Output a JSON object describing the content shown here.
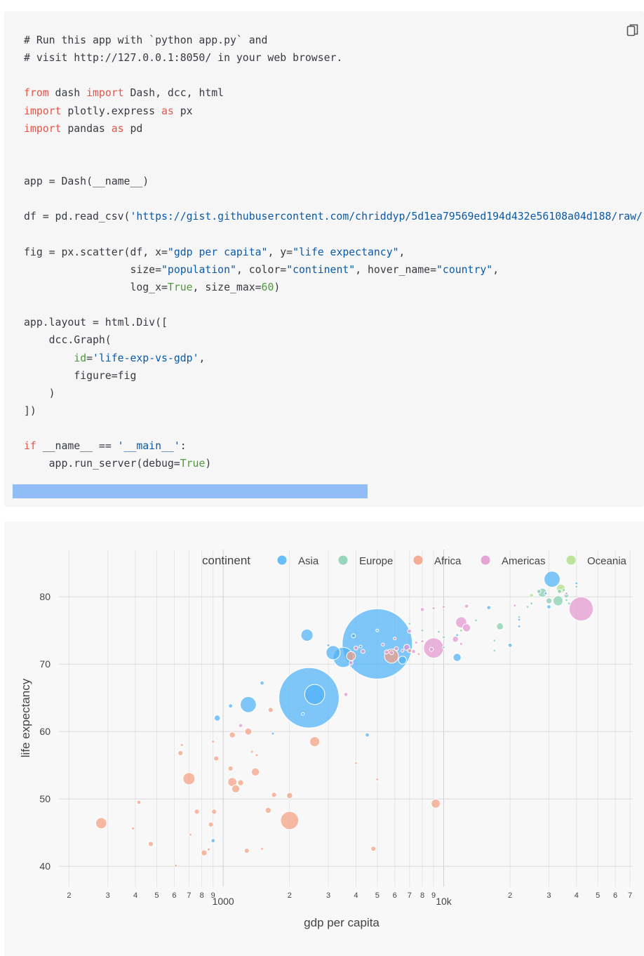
{
  "code": {
    "lines": [
      [
        {
          "t": "# Run this app with `python app.py` and"
        }
      ],
      [
        {
          "t": "# visit http://127.0.0.1:8050/ in your web browser."
        }
      ],
      [
        {
          "t": ""
        }
      ],
      [
        {
          "t": "from",
          "c": "kw"
        },
        {
          "t": " dash "
        },
        {
          "t": "import",
          "c": "kw"
        },
        {
          "t": " Dash, dcc, html"
        }
      ],
      [
        {
          "t": "import",
          "c": "kw"
        },
        {
          "t": " plotly.express "
        },
        {
          "t": "as",
          "c": "kw"
        },
        {
          "t": " px"
        }
      ],
      [
        {
          "t": "import",
          "c": "kw"
        },
        {
          "t": " pandas "
        },
        {
          "t": "as",
          "c": "kw"
        },
        {
          "t": " pd"
        }
      ],
      [
        {
          "t": ""
        }
      ],
      [
        {
          "t": ""
        }
      ],
      [
        {
          "t": "app = Dash(__name__)"
        }
      ],
      [
        {
          "t": ""
        }
      ],
      [
        {
          "t": "df = pd.read_csv("
        },
        {
          "t": "'https://gist.githubusercontent.com/chriddyp/5d1ea79569ed194d432e56108a04d188/raw/",
          "c": "str"
        }
      ],
      [
        {
          "t": ""
        }
      ],
      [
        {
          "t": "fig = px.scatter(df, x="
        },
        {
          "t": "\"gdp per capita\"",
          "c": "str"
        },
        {
          "t": ", y="
        },
        {
          "t": "\"life expectancy\"",
          "c": "str"
        },
        {
          "t": ","
        }
      ],
      [
        {
          "t": "                 size="
        },
        {
          "t": "\"population\"",
          "c": "str"
        },
        {
          "t": ", color="
        },
        {
          "t": "\"continent\"",
          "c": "str"
        },
        {
          "t": ", hover_name="
        },
        {
          "t": "\"country\"",
          "c": "str"
        },
        {
          "t": ","
        }
      ],
      [
        {
          "t": "                 log_x="
        },
        {
          "t": "True",
          "c": "num"
        },
        {
          "t": ", size_max="
        },
        {
          "t": "60",
          "c": "num"
        },
        {
          "t": ")"
        }
      ],
      [
        {
          "t": ""
        }
      ],
      [
        {
          "t": "app.layout = html.Div(["
        }
      ],
      [
        {
          "t": "    dcc.Graph("
        }
      ],
      [
        {
          "t": "        "
        },
        {
          "t": "id",
          "c": "num"
        },
        {
          "t": "="
        },
        {
          "t": "'life-exp-vs-gdp'",
          "c": "str"
        },
        {
          "t": ","
        }
      ],
      [
        {
          "t": "        figure=fig"
        }
      ],
      [
        {
          "t": "    )"
        }
      ],
      [
        {
          "t": "])"
        }
      ],
      [
        {
          "t": ""
        }
      ],
      [
        {
          "t": "if",
          "c": "kw"
        },
        {
          "t": " __name__ == "
        },
        {
          "t": "'__main__'",
          "c": "str"
        },
        {
          "t": ":"
        }
      ],
      [
        {
          "t": "    app.run_server(debug="
        },
        {
          "t": "True",
          "c": "num"
        },
        {
          "t": ")"
        }
      ]
    ]
  },
  "toolbar": {
    "copy_icon": "copy-icon"
  },
  "colors": {
    "Asia": "#4fb1f8",
    "Europe": "#86cfb2",
    "Africa": "#f39f82",
    "Americas": "#e297cf",
    "Oceania": "#b3de8a"
  },
  "chart_data": {
    "type": "scatter",
    "xlabel": "gdp per capita",
    "ylabel": "life expectancy",
    "x_scale": "log",
    "xlim": [
      180,
      72000
    ],
    "ylim": [
      37,
      87
    ],
    "x_ticks": [
      {
        "v": 200,
        "label": "2"
      },
      {
        "v": 300,
        "label": "3"
      },
      {
        "v": 400,
        "label": "4"
      },
      {
        "v": 500,
        "label": "5"
      },
      {
        "v": 600,
        "label": "6"
      },
      {
        "v": 700,
        "label": "7"
      },
      {
        "v": 800,
        "label": "8"
      },
      {
        "v": 900,
        "label": "9"
      },
      {
        "v": 1000,
        "label": "1000",
        "major": true
      },
      {
        "v": 2000,
        "label": "2"
      },
      {
        "v": 3000,
        "label": "3"
      },
      {
        "v": 4000,
        "label": "4"
      },
      {
        "v": 5000,
        "label": "5"
      },
      {
        "v": 6000,
        "label": "6"
      },
      {
        "v": 7000,
        "label": "7"
      },
      {
        "v": 8000,
        "label": "8"
      },
      {
        "v": 9000,
        "label": "9"
      },
      {
        "v": 10000,
        "label": "10k",
        "major": true
      },
      {
        "v": 20000,
        "label": "2"
      },
      {
        "v": 30000,
        "label": "3"
      },
      {
        "v": 40000,
        "label": "4"
      },
      {
        "v": 50000,
        "label": "5"
      },
      {
        "v": 60000,
        "label": "6"
      },
      {
        "v": 70000,
        "label": "7"
      }
    ],
    "y_ticks": [
      40,
      50,
      60,
      70,
      80
    ],
    "grid": true,
    "legend": {
      "title": "continent",
      "placement": "top-right",
      "entries": [
        "Asia",
        "Europe",
        "Africa",
        "Americas",
        "Oceania"
      ]
    },
    "series": [
      {
        "name": "Asia",
        "points": [
          [
            5000,
            73,
            3.5
          ],
          [
            2450,
            65,
            3
          ],
          [
            2600,
            65.5,
            1
          ],
          [
            3500,
            71,
            1
          ],
          [
            3150,
            71.7,
            0.7
          ],
          [
            1300,
            64,
            0.8
          ],
          [
            2400,
            74.3,
            0.6
          ],
          [
            1080,
            63.8,
            0.2
          ],
          [
            940,
            62,
            0.3
          ],
          [
            1500,
            67.2,
            0.2
          ],
          [
            900,
            43.8,
            0.2
          ],
          [
            4500,
            59.5,
            0.2
          ],
          [
            3000,
            72.8,
            0.1
          ],
          [
            11500,
            71,
            0.4
          ],
          [
            11500,
            74.3,
            0.1
          ],
          [
            6500,
            70.6,
            0.4
          ],
          [
            16000,
            78.4,
            0.2
          ],
          [
            20000,
            72.8,
            0.2
          ],
          [
            22000,
            76.6,
            0.1
          ],
          [
            22000,
            75.6,
            0.1
          ],
          [
            31000,
            82.6,
            0.8
          ],
          [
            30000,
            78.5,
            0.2
          ],
          [
            29000,
            80.5,
            0.1
          ],
          [
            40000,
            82,
            0.1
          ],
          [
            3900,
            74.2,
            0.2
          ],
          [
            4200,
            72.6,
            0.1
          ],
          [
            1680,
            59.7,
            0.1
          ],
          [
            2300,
            62.6,
            0.1
          ]
        ]
      },
      {
        "name": "Europe",
        "points": [
          [
            28000,
            80.6,
            0.45
          ],
          [
            33000,
            79.4,
            0.5
          ],
          [
            36000,
            80.2,
            0.25
          ],
          [
            30000,
            79.4,
            0.3
          ],
          [
            33500,
            80.8,
            0.2
          ],
          [
            18000,
            75.6,
            0.35
          ],
          [
            10000,
            74,
            0.15
          ],
          [
            10000,
            72.5,
            0.1
          ],
          [
            8000,
            75,
            0.1
          ],
          [
            25000,
            79,
            0.15
          ],
          [
            22000,
            77,
            0.1
          ],
          [
            17000,
            73.5,
            0.1
          ],
          [
            7000,
            76,
            0.1
          ],
          [
            5000,
            75,
            0.1
          ],
          [
            37000,
            79,
            0.15
          ],
          [
            27000,
            80.8,
            0.2
          ],
          [
            35000,
            81,
            0.15
          ],
          [
            12000,
            75,
            0.1
          ],
          [
            9500,
            74.8,
            0.1
          ],
          [
            14000,
            76.5,
            0.1
          ],
          [
            40000,
            81.5,
            0.1
          ],
          [
            36000,
            79.5,
            0.1
          ],
          [
            17000,
            72,
            0.1
          ],
          [
            24000,
            78.5,
            0.1
          ]
        ]
      },
      {
        "name": "Africa",
        "points": [
          [
            2600,
            58.5,
            0.5
          ],
          [
            3800,
            71.2,
            0.45
          ],
          [
            5800,
            71.2,
            0.7
          ],
          [
            2000,
            46.8,
            0.9
          ],
          [
            700,
            53,
            0.6
          ],
          [
            280,
            46.4,
            0.55
          ],
          [
            1100,
            52.5,
            0.45
          ],
          [
            1400,
            54,
            0.4
          ],
          [
            1300,
            60,
            0.35
          ],
          [
            1100,
            59.5,
            0.3
          ],
          [
            9200,
            49.3,
            0.45
          ],
          [
            2000,
            50.5,
            0.3
          ],
          [
            1640,
            63.2,
            0.25
          ],
          [
            1600,
            48.3,
            0.3
          ],
          [
            1700,
            50.6,
            0.25
          ],
          [
            1140,
            51.5,
            0.4
          ],
          [
            1200,
            52.4,
            0.3
          ],
          [
            640,
            56.8,
            0.25
          ],
          [
            760,
            48.1,
            0.25
          ],
          [
            930,
            56,
            0.25
          ],
          [
            470,
            43.3,
            0.25
          ],
          [
            1080,
            54.5,
            0.25
          ],
          [
            910,
            48.1,
            0.25
          ],
          [
            880,
            46.2,
            0.25
          ],
          [
            820,
            42,
            0.3
          ],
          [
            860,
            42.5,
            0.15
          ],
          [
            1280,
            42.3,
            0.25
          ],
          [
            4800,
            42.6,
            0.25
          ],
          [
            650,
            58,
            0.15
          ],
          [
            900,
            58.5,
            0.15
          ],
          [
            415,
            49.5,
            0.2
          ],
          [
            390,
            45.6,
            0.15
          ],
          [
            4000,
            55.3,
            0.1
          ],
          [
            5000,
            52.9,
            0.1
          ],
          [
            7000,
            72,
            0.2
          ],
          [
            7700,
            71.5,
            0.1
          ],
          [
            6000,
            73.8,
            0.1
          ],
          [
            710,
            44.7,
            0.1
          ],
          [
            1420,
            56.5,
            0.15
          ],
          [
            1500,
            42.6,
            0.1
          ],
          [
            610,
            40.1,
            0.1
          ],
          [
            1350,
            57,
            0.15
          ]
        ]
      },
      {
        "name": "Americas",
        "points": [
          [
            42000,
            78.2,
            1.2
          ],
          [
            9000,
            72.4,
            1.0
          ],
          [
            12000,
            76.2,
            0.55
          ],
          [
            6800,
            72.5,
            0.3
          ],
          [
            12700,
            75.4,
            0.4
          ],
          [
            8000,
            78.1,
            0.2
          ],
          [
            12700,
            78.6,
            0.2
          ],
          [
            11300,
            73.7,
            0.3
          ],
          [
            7300,
            71.9,
            0.2
          ],
          [
            6100,
            72.3,
            0.2
          ],
          [
            8800,
            72.2,
            0.2
          ],
          [
            9000,
            78.3,
            0.15
          ],
          [
            10000,
            78.5,
            0.15
          ],
          [
            7000,
            74.9,
            0.2
          ],
          [
            5500,
            71.8,
            0.2
          ],
          [
            5800,
            71.7,
            0.2
          ],
          [
            4000,
            72.4,
            0.2
          ],
          [
            3800,
            70.2,
            0.2
          ],
          [
            1200,
            60.9,
            0.2
          ],
          [
            3600,
            65.5,
            0.2
          ],
          [
            6500,
            72,
            0.15
          ],
          [
            7500,
            73.2,
            0.15
          ],
          [
            5300,
            72.9,
            0.15
          ],
          [
            8000,
            73.4,
            0.15
          ],
          [
            4300,
            71.9,
            0.2
          ],
          [
            21000,
            78.7,
            0.1
          ],
          [
            36000,
            80.5,
            0.1
          ],
          [
            12000,
            73,
            0.15
          ]
        ]
      },
      {
        "name": "Oceania",
        "points": [
          [
            34000,
            81.2,
            0.45
          ],
          [
            25000,
            80.2,
            0.2
          ]
        ]
      }
    ]
  }
}
